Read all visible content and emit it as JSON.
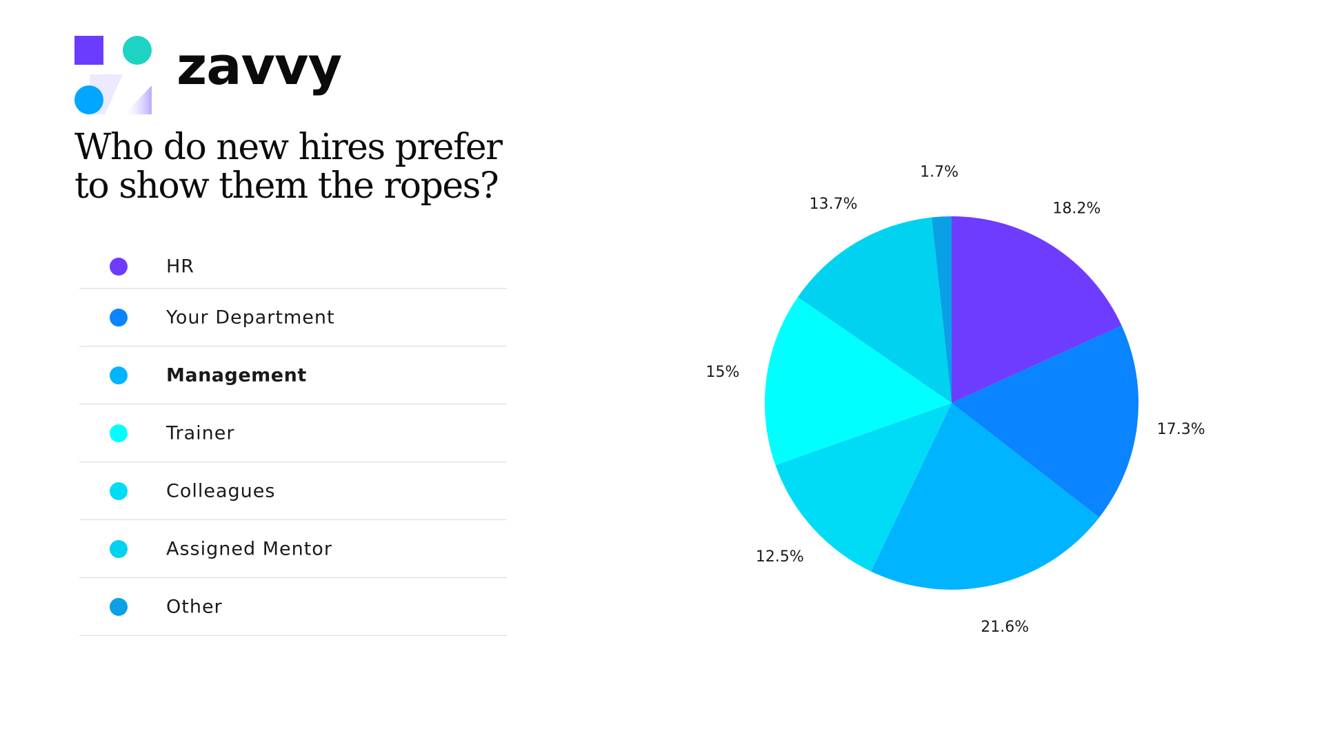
{
  "brand": {
    "name": "zavvy",
    "mark_colors": [
      "#6a3cff",
      "#1fd3c4",
      "#00a6ff",
      "#b9a8ff"
    ]
  },
  "title": "Who do new hires prefer to show them the ropes?",
  "legend": [
    {
      "label": "HR",
      "color": "#6e3cff",
      "emphasis": false
    },
    {
      "label": "Your Department",
      "color": "#0a84ff",
      "emphasis": false
    },
    {
      "label": "Management",
      "color": "#00b4ff",
      "emphasis": true
    },
    {
      "label": "Trainer",
      "color": "#00ffff",
      "emphasis": false
    },
    {
      "label": "Colleagues",
      "color": "#00dcf5",
      "emphasis": false
    },
    {
      "label": "Assigned Mentor",
      "color": "#00d2f0",
      "emphasis": false
    },
    {
      "label": "Other",
      "color": "#0aa0e6",
      "emphasis": false
    }
  ],
  "chart_data": {
    "type": "pie",
    "title": "Who do new hires prefer to show them the ropes?",
    "categories": [
      "HR",
      "Your Department",
      "Management",
      "Colleagues",
      "Trainer",
      "Assigned Mentor",
      "Other"
    ],
    "values": [
      18.2,
      17.3,
      21.6,
      12.5,
      15,
      13.7,
      1.7
    ],
    "labels": [
      "18.2%",
      "17.3%",
      "21.6%",
      "12.5%",
      "15%",
      "13.7%",
      "1.7%"
    ],
    "colors": [
      "#6e3cff",
      "#0a84ff",
      "#00b4ff",
      "#00dcf5",
      "#00ffff",
      "#00d2f0",
      "#0aa0e6"
    ],
    "start_angle": "12 o'clock",
    "direction": "clockwise",
    "legend": "left"
  }
}
